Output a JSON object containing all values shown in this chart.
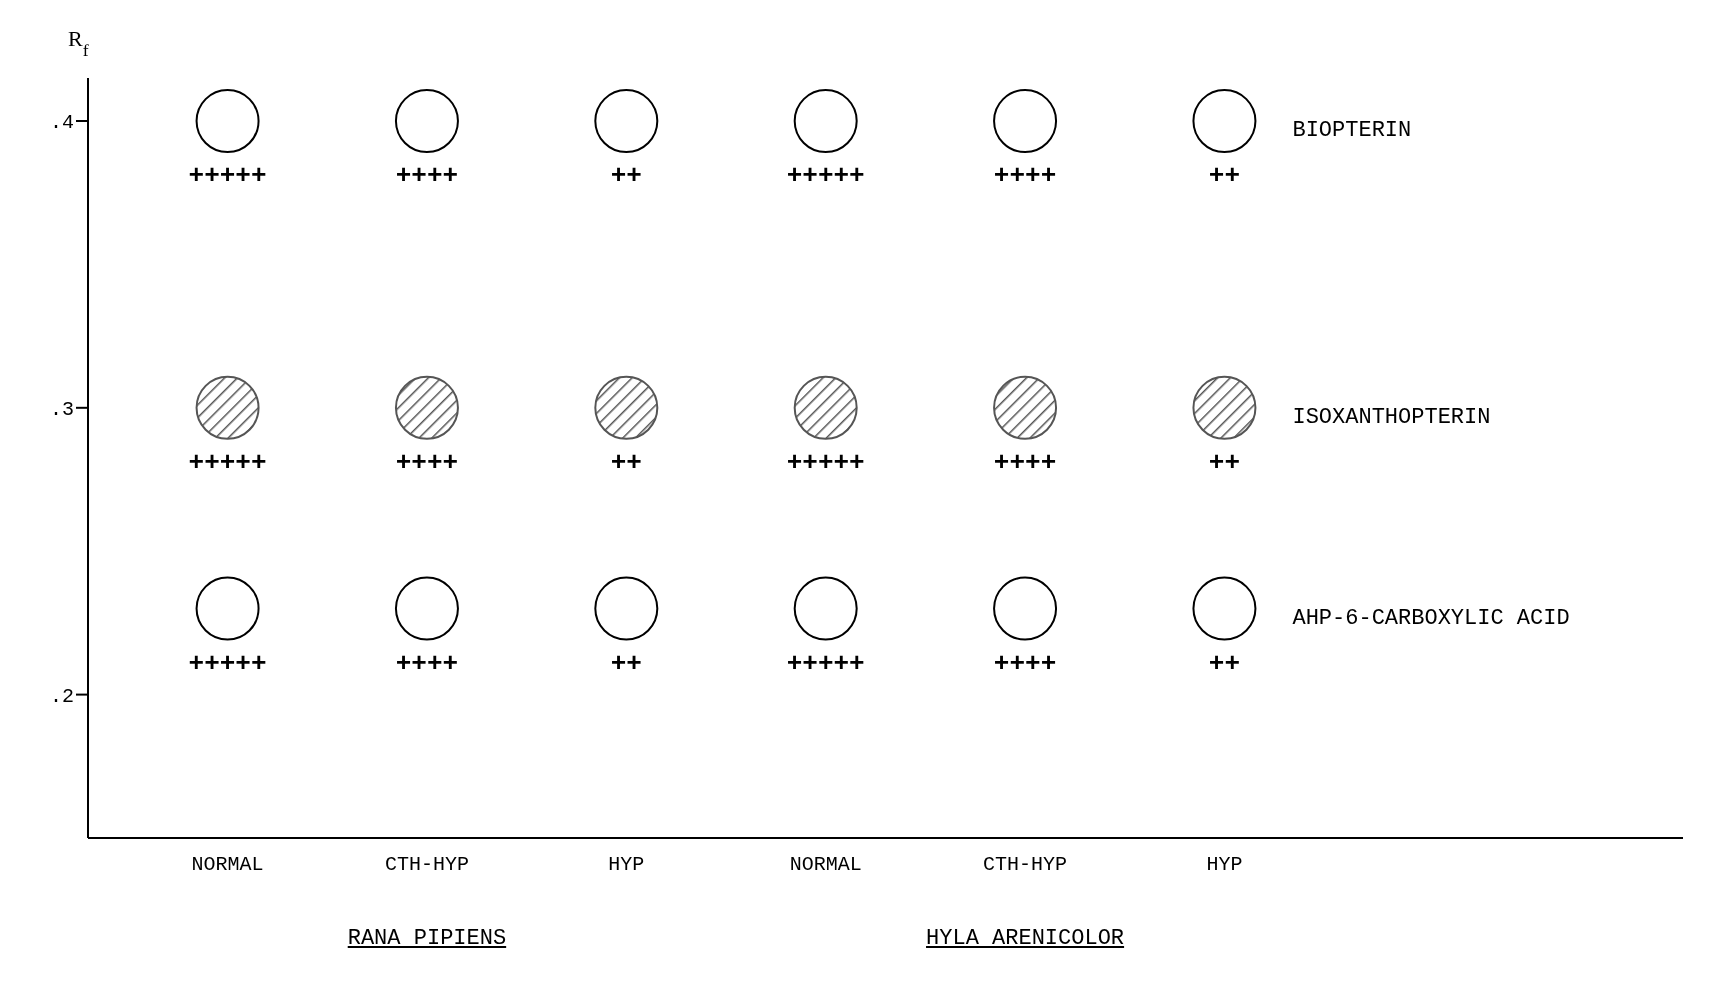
{
  "chart_data": {
    "type": "scatter",
    "ylabel": "R$_{f}$",
    "categories": [
      "NORMAL",
      "CTH-HYP",
      "HYP",
      "NORMAL",
      "CTH-HYP",
      "HYP"
    ],
    "series": [
      {
        "name": "BIOPTERIN",
        "color": "#000000",
        "values": [
          0.4,
          0.4,
          0.4,
          0.4,
          0.4,
          0.4
        ],
        "value_labels": [
          "+++++",
          "++++",
          "++",
          "+++++",
          "++++",
          "++"
        ]
      },
      {
        "name": "ISOXANTHOPTERIN",
        "color": "#555555",
        "values": [
          0.3,
          0.3,
          0.3,
          0.3,
          0.3,
          0.3
        ],
        "value_labels": [
          "+++++",
          "++++",
          "++",
          "+++++",
          "++++",
          "++"
        ]
      },
      {
        "name": "AHP-6-CARBOXYLIC ACID",
        "color": "#000000",
        "values": [
          0.23,
          0.23,
          0.23,
          0.23,
          0.23,
          0.23
        ],
        "value_labels": [
          "+++++",
          "++++",
          "++",
          "+++++",
          "++++",
          "++"
        ]
      }
    ],
    "ylim": [
      0.15,
      0.415
    ],
    "yticks": [
      {
        "value": 0.4,
        "label": ".4"
      },
      {
        "value": 0.3,
        "label": ".3"
      },
      {
        "value": 0.2,
        "label": ".2"
      }
    ],
    "annotations": [
      "RANA PIPIENS",
      "HYLA ARENICOLOR"
    ],
    "grid": false,
    "legend": false,
    "marker": "circle"
  }
}
